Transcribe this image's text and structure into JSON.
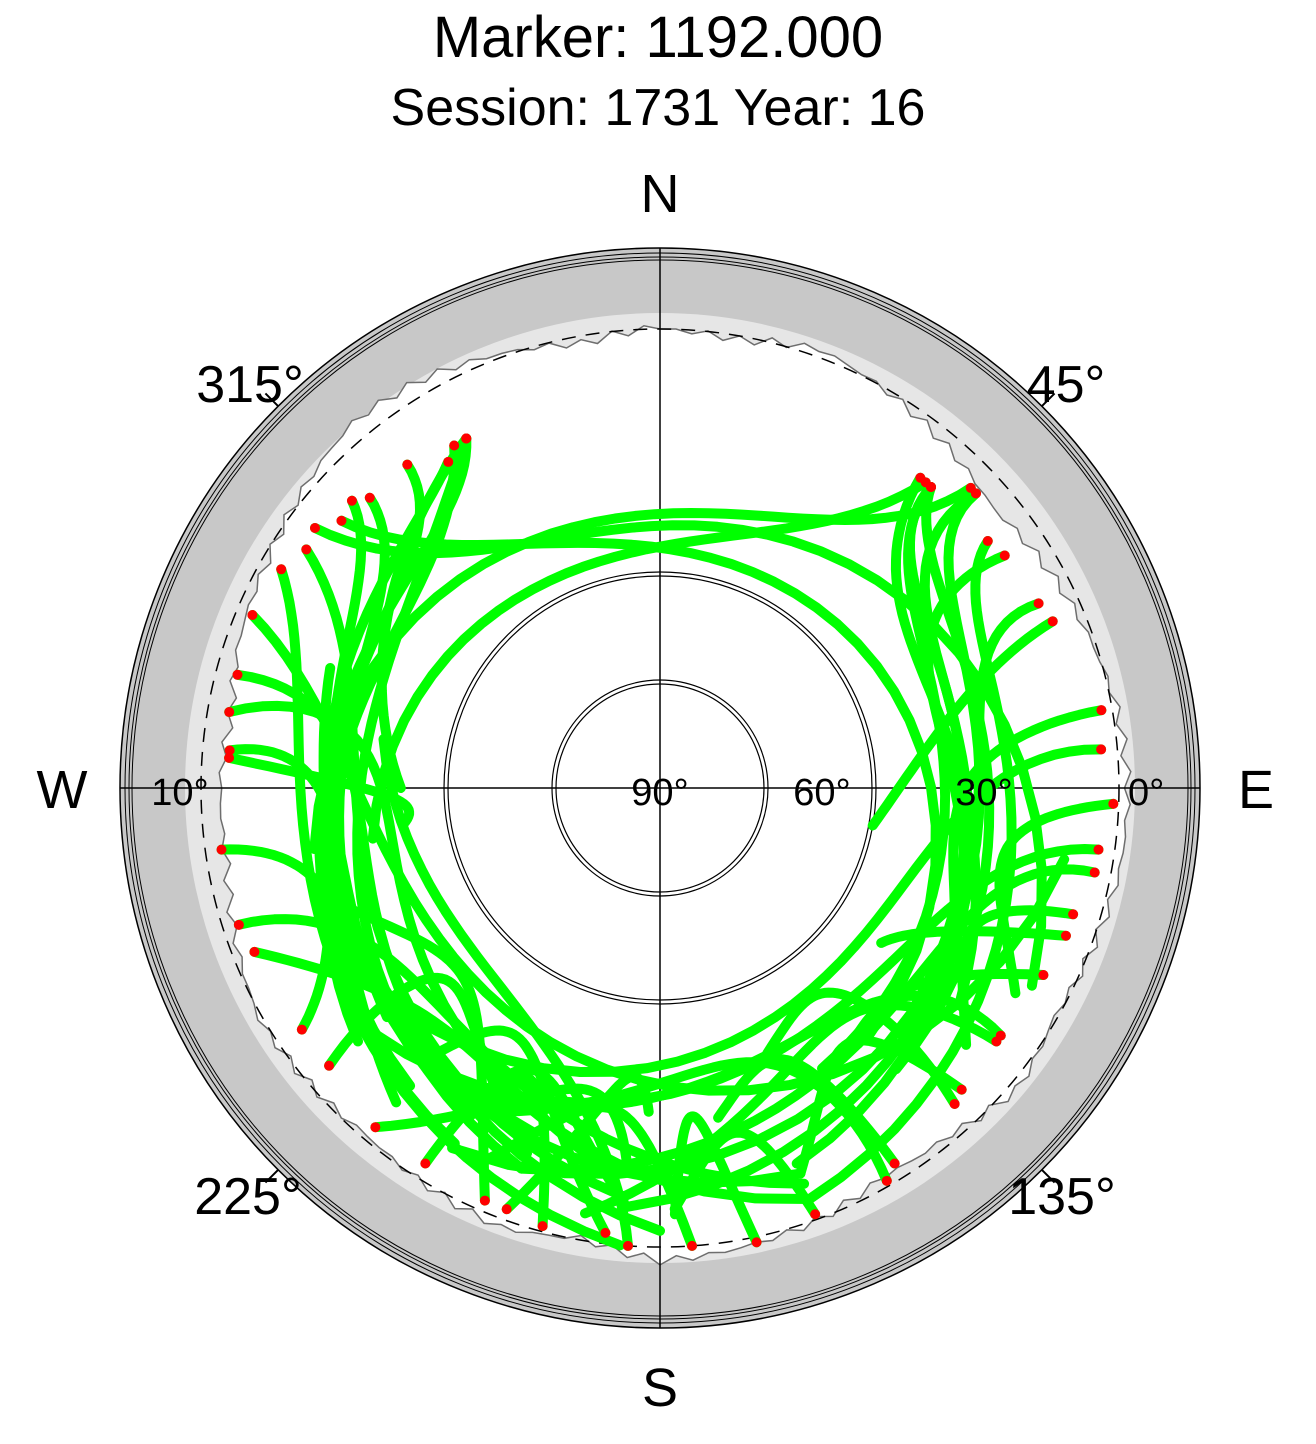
{
  "title": "Marker: 1192.000",
  "subtitle": "Session: 1731 Year: 16",
  "compass": {
    "north": "N",
    "south": "S",
    "east": "E",
    "west": "W"
  },
  "azimuth_labels": [
    {
      "az": 45,
      "text": "45°"
    },
    {
      "az": 135,
      "text": "135°"
    },
    {
      "az": 225,
      "text": "225°"
    },
    {
      "az": 315,
      "text": "315°"
    }
  ],
  "elevation_labels": [
    {
      "elev": 90,
      "text": "90°",
      "side": "east"
    },
    {
      "elev": 60,
      "text": "60°",
      "side": "east"
    },
    {
      "elev": 30,
      "text": "30°",
      "side": "east"
    },
    {
      "elev": 0,
      "text": "0°",
      "side": "east"
    },
    {
      "elev": 10,
      "text": "10°",
      "side": "west"
    }
  ],
  "colors": {
    "track": "#00ff00",
    "endpoint": "#ff0000",
    "below_horizon": "#c8c8c8",
    "masked": "#e6e6e6",
    "grid": "#000000",
    "mask_outline": "#6e6e6e"
  },
  "chart_data": {
    "type": "scatter",
    "projection": "polar sky plot, azimuth clockwise from north, elevation from 90° at centre to 0° at edge",
    "elevation_range": [
      -10,
      90
    ],
    "elevation_rings": [
      70,
      50
    ],
    "cutoff_elevation": 5,
    "series": [],
    "elevation_mask": [
      [
        0,
        5
      ],
      [
        10,
        6
      ],
      [
        20,
        4
      ],
      [
        30,
        6
      ],
      [
        40,
        8
      ],
      [
        50,
        10
      ],
      [
        60,
        8
      ],
      [
        70,
        6
      ],
      [
        80,
        4
      ],
      [
        90,
        3
      ],
      [
        100,
        3
      ],
      [
        110,
        4
      ],
      [
        120,
        5
      ],
      [
        130,
        3
      ],
      [
        140,
        6
      ],
      [
        150,
        7
      ],
      [
        160,
        5
      ],
      [
        170,
        4
      ],
      [
        180,
        3
      ],
      [
        190,
        6
      ],
      [
        200,
        4
      ],
      [
        210,
        5
      ],
      [
        220,
        6
      ],
      [
        230,
        5
      ],
      [
        240,
        4
      ],
      [
        250,
        6
      ],
      [
        260,
        8
      ],
      [
        270,
        8
      ],
      [
        280,
        9
      ],
      [
        290,
        7
      ],
      [
        300,
        6
      ],
      [
        310,
        4
      ],
      [
        320,
        2
      ],
      [
        330,
        3
      ],
      [
        340,
        5
      ],
      [
        350,
        7
      ],
      [
        360,
        5
      ]
    ],
    "tracks": [
      {
        "a0": -29,
        "e0": 16,
        "a1": -52,
        "e1": 30,
        "a2": -90,
        "e2": 42,
        "n": 30
      },
      {
        "a0": -29,
        "e0": 16,
        "a1": -40,
        "e1": 45,
        "a2": -150,
        "e2": 14,
        "n": 40
      },
      {
        "a0": -29,
        "e0": 16,
        "a1": -60,
        "e1": 55,
        "a2": -160,
        "e2": 15,
        "n": 40
      },
      {
        "a0": -31,
        "e0": 16,
        "a1": -45,
        "e1": 50,
        "a2": -130,
        "e2": 17,
        "n": 40
      },
      {
        "a0": -33,
        "e0": 18,
        "a1": -60,
        "e1": 40,
        "a2": -200,
        "e2": 14,
        "n": 40
      },
      {
        "a0": -38,
        "e0": 14,
        "a1": -40,
        "e1": 45,
        "a2": -140,
        "e2": 18,
        "n": 40
      },
      {
        "a0": -45,
        "e0": 14,
        "a1": -50,
        "e1": 45,
        "a2": -150,
        "e2": 20,
        "n": 40
      },
      {
        "a0": -47,
        "e0": 12,
        "a1": -55,
        "e1": 40,
        "a2": -160,
        "e2": 22,
        "n": 40
      },
      {
        "a0": -50,
        "e0": 13,
        "a1": -40,
        "e1": 70,
        "a2": 140,
        "e2": 30,
        "n": 40
      },
      {
        "a0": -53,
        "e0": 10,
        "a1": -45,
        "e1": 72,
        "a2": 118,
        "e2": 12,
        "n": 40
      },
      {
        "a0": -56,
        "e0": 11,
        "a1": -70,
        "e1": 55,
        "a2": -175,
        "e2": 14,
        "n": 40
      },
      {
        "a0": -60,
        "e0": 9,
        "a1": -80,
        "e1": 40,
        "a2": -175,
        "e2": 5,
        "n": 40
      },
      {
        "a0": -67,
        "e0": 8,
        "a1": -85,
        "e1": 70,
        "a2": 100,
        "e2": 14,
        "n": 40
      },
      {
        "a0": -75,
        "e0": 9,
        "a1": -70,
        "e1": 60,
        "a2": -180,
        "e2": 8,
        "n": 40
      },
      {
        "a0": -80,
        "e0": 9,
        "a1": -60,
        "e1": 70,
        "a2": 160,
        "e2": 9,
        "n": 40
      },
      {
        "a0": -85,
        "e0": 10,
        "a1": -80,
        "e1": 40,
        "a2": -130,
        "e2": 24,
        "n": 40
      },
      {
        "a0": -86,
        "e0": 10,
        "a1": -90,
        "e1": 50,
        "a2": -98,
        "e2": 42,
        "n": 30
      },
      {
        "a0": -98,
        "e0": 8,
        "a1": -100,
        "e1": 40,
        "a2": -140,
        "e2": 14,
        "n": 40
      },
      {
        "a0": -108,
        "e0": 8,
        "a1": -110,
        "e1": 55,
        "a2": 160,
        "e2": 12,
        "n": 40
      },
      {
        "a0": -112,
        "e0": 9,
        "a1": -130,
        "e1": 45,
        "a2": -170,
        "e2": 20,
        "n": 40
      },
      {
        "a0": -124,
        "e0": 10,
        "a1": -115,
        "e1": 35,
        "a2": -70,
        "e2": 25,
        "n": 40
      },
      {
        "a0": -130,
        "e0": 10,
        "a1": -120,
        "e1": 60,
        "a2": -160,
        "e2": 18,
        "n": 40
      },
      {
        "a0": -140,
        "e0": 8,
        "a1": -170,
        "e1": 50,
        "a2": -175,
        "e2": 20,
        "n": 40
      },
      {
        "a0": -148,
        "e0": 8,
        "a1": -150,
        "e1": 55,
        "a2": -175,
        "e2": 13,
        "n": 40
      },
      {
        "a0": -157,
        "e0": 7,
        "a1": -140,
        "e1": 60,
        "a2": -110,
        "e2": 27,
        "n": 40
      },
      {
        "a0": -160,
        "e0": 7,
        "a1": -175,
        "e1": 50,
        "a2": -178,
        "e2": 30,
        "n": 40
      },
      {
        "a0": -165,
        "e0": 6,
        "a1": -160,
        "e1": 40,
        "a2": -150,
        "e2": 28,
        "n": 40
      },
      {
        "a0": -173,
        "e0": 7,
        "a1": -150,
        "e1": 55,
        "a2": -140,
        "e2": 26,
        "n": 40
      },
      {
        "a0": -176,
        "e0": 5,
        "a1": -170,
        "e1": 60,
        "a2": -80,
        "e2": 38,
        "n": 40
      },
      {
        "a0": 176,
        "e0": 5,
        "a1": -175,
        "e1": 50,
        "a2": -155,
        "e2": 14,
        "n": 40
      },
      {
        "a0": 168,
        "e0": 4,
        "a1": 175,
        "e1": 50,
        "a2": 178,
        "e2": 11,
        "n": 40
      },
      {
        "a0": 160,
        "e0": 6,
        "a1": 165,
        "e1": 40,
        "a2": 178,
        "e2": 12,
        "n": 40
      },
      {
        "a0": 150,
        "e0": 6,
        "a1": 145,
        "e1": 60,
        "a2": -150,
        "e2": 21,
        "n": 40
      },
      {
        "a0": 148,
        "e0": 8,
        "a1": 150,
        "e1": 50,
        "a2": 170,
        "e2": 28,
        "n": 40
      },
      {
        "a0": 137,
        "e0": 10,
        "a1": 130,
        "e1": 55,
        "a2": 158,
        "e2": 37,
        "n": 40
      },
      {
        "a0": 135,
        "e0": 11,
        "a1": 140,
        "e1": 50,
        "a2": 160,
        "e2": 14,
        "n": 40
      },
      {
        "a0": 127,
        "e0": 12,
        "a1": 130,
        "e1": 60,
        "a2": -170,
        "e2": 10,
        "n": 40
      },
      {
        "a0": 126,
        "e0": 12,
        "a1": 120,
        "e1": 55,
        "a2": -150,
        "e2": 24,
        "n": 40
      },
      {
        "a0": 116,
        "e0": 11,
        "a1": 125,
        "e1": 40,
        "a2": 145,
        "e2": 30,
        "n": 40
      },
      {
        "a0": 110,
        "e0": 10,
        "a1": 115,
        "e1": 35,
        "a2": 125,
        "e2": 40,
        "n": 30
      },
      {
        "a0": 107,
        "e0": 10,
        "a1": 110,
        "e1": 40,
        "a2": 130,
        "e2": 16,
        "n": 40
      },
      {
        "a0": 101,
        "e0": 8,
        "a1": 100,
        "e1": 50,
        "a2": -160,
        "e2": 15,
        "n": 40
      },
      {
        "a0": 98,
        "e0": 8,
        "a1": 100,
        "e1": 60,
        "a2": -130,
        "e2": 20,
        "n": 40
      },
      {
        "a0": 92,
        "e0": 6,
        "a1": 95,
        "e1": 40,
        "a2": 120,
        "e2": 14,
        "n": 40
      },
      {
        "a0": 85,
        "e0": 8,
        "a1": 80,
        "e1": 70,
        "a2": -120,
        "e2": 24,
        "n": 40
      },
      {
        "a0": 80,
        "e0": 7,
        "a1": 80,
        "e1": 50,
        "a2": 120,
        "e2": 27,
        "n": 40
      },
      {
        "a0": 67,
        "e0": 11,
        "a1": 70,
        "e1": 40,
        "a2": 100,
        "e2": 50,
        "n": 30
      },
      {
        "a0": 64,
        "e0": 12,
        "a1": 60,
        "e1": 50,
        "a2": -175,
        "e2": 12,
        "n": 40
      },
      {
        "a0": 56,
        "e0": 13,
        "a1": 50,
        "e1": 50,
        "a2": 110,
        "e2": 30,
        "n": 40
      },
      {
        "a0": 53,
        "e0": 14,
        "a1": 60,
        "e1": 40,
        "a2": 160,
        "e2": 9,
        "n": 40
      },
      {
        "a0": 47,
        "e0": 10,
        "a1": 40,
        "e1": 55,
        "a2": 160,
        "e2": 16,
        "n": 40
      },
      {
        "a0": 47,
        "e0": 10,
        "a1": 45,
        "e1": 50,
        "a2": -150,
        "e2": 13,
        "n": 40
      },
      {
        "a0": 46,
        "e0": 10,
        "a1": 40,
        "e1": 60,
        "a2": -100,
        "e2": 25,
        "n": 40
      },
      {
        "a0": 42,
        "e0": 15,
        "a1": 43,
        "e1": 50,
        "a2": 150,
        "e2": 30,
        "n": 40
      },
      {
        "a0": 42,
        "e0": 15,
        "a1": 42,
        "e1": 45,
        "a2": 130,
        "e2": 28,
        "n": 40
      },
      {
        "a0": 42,
        "e0": 15,
        "a1": 50,
        "e1": 40,
        "a2": 140,
        "e2": 22,
        "n": 40
      },
      {
        "a0": 41,
        "e0": 15,
        "a1": 30,
        "e1": 65,
        "a2": -100,
        "e2": 36,
        "n": 40
      },
      {
        "a0": 40,
        "e0": 15,
        "a1": 45,
        "e1": 55,
        "a2": 125,
        "e2": 22,
        "n": 40
      }
    ]
  }
}
